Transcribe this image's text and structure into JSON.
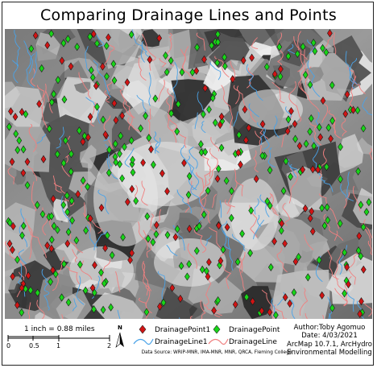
{
  "title": "Comparing Drainage Lines and Points",
  "scale": {
    "label": "1 inch = 0.88 miles",
    "ticks": [
      "0",
      "0.5",
      "1",
      "2"
    ]
  },
  "north_arrow": "N",
  "legend": {
    "items": [
      {
        "label": "DrainagePoint1",
        "symbol": "diamond",
        "color": "#d11414"
      },
      {
        "label": "DrainagePoint",
        "symbol": "diamond",
        "color": "#18d418"
      },
      {
        "label": "DrainageLine1",
        "symbol": "line",
        "color": "#4aa3e8"
      },
      {
        "label": "DrainageLine",
        "symbol": "line",
        "color": "#f08080"
      }
    ]
  },
  "author": {
    "line1": "Author:Toby Agomuo",
    "line2": "Date: 4/03/2021",
    "line3": "ArcMap 10.7.1, ArcHydro",
    "line4": "Environmental Modelling"
  },
  "source": "Data Source: WRIP-MNR, IMA-MNR, MNR, QRCA, Fleming College",
  "colors": {
    "point1": "#d11414",
    "point": "#18d418",
    "line1": "#4aa3e8",
    "line": "#f08080"
  }
}
